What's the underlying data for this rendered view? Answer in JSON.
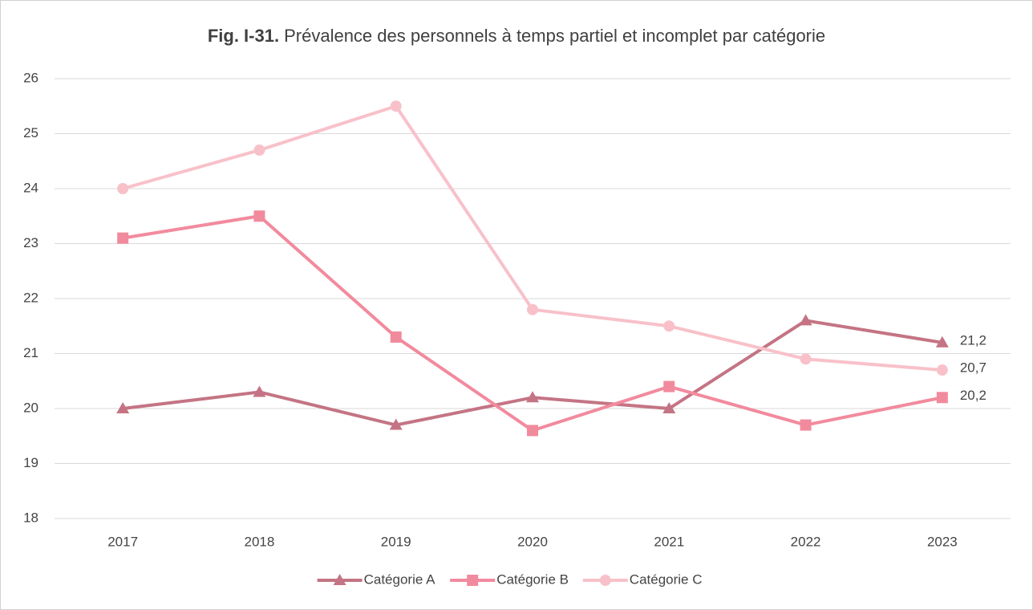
{
  "chart_data": {
    "type": "line",
    "title_label": "Fig. I-31.",
    "title": "Prévalence des personnels à temps partiel et incomplet par catégorie",
    "categories": [
      "2017",
      "2018",
      "2019",
      "2020",
      "2021",
      "2022",
      "2023"
    ],
    "series": [
      {
        "name": "Catégorie A",
        "color": "#c47484",
        "marker": "triangle",
        "values": [
          20.0,
          20.3,
          19.7,
          20.2,
          20.0,
          21.6,
          21.2
        ],
        "value_labels": [
          null,
          null,
          null,
          null,
          null,
          null,
          "21,2"
        ]
      },
      {
        "name": "Catégorie B",
        "color": "#f28a9d",
        "marker": "square",
        "values": [
          23.1,
          23.5,
          21.3,
          19.6,
          20.4,
          19.7,
          20.2
        ],
        "value_labels": [
          null,
          null,
          null,
          null,
          null,
          null,
          "20,2"
        ]
      },
      {
        "name": "Catégorie C",
        "color": "#f8c1c9",
        "marker": "circle",
        "values": [
          24.0,
          24.7,
          25.5,
          21.8,
          21.5,
          20.9,
          20.7
        ],
        "value_labels": [
          null,
          null,
          null,
          null,
          null,
          null,
          "20,7"
        ]
      }
    ],
    "ylim": [
      18,
      26
    ],
    "yticks": [
      18,
      19,
      20,
      21,
      22,
      23,
      24,
      25,
      26
    ],
    "grid": true,
    "legend": "bottom"
  }
}
